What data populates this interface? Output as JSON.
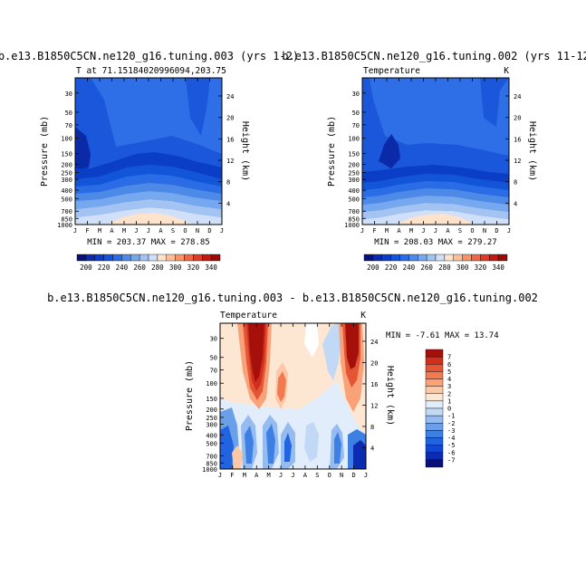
{
  "colors": {
    "background": "#ffffff",
    "frame": "#000000",
    "abs_levels": [
      190,
      200,
      210,
      220,
      230,
      240,
      250,
      260,
      270,
      280,
      290,
      300,
      310,
      320,
      330,
      340,
      350
    ],
    "abs_palette": [
      "#08107a",
      "#0a2aa8",
      "#0b3ec7",
      "#1355d8",
      "#2a6ce6",
      "#4d8ae8",
      "#75a8ee",
      "#a3c4f3",
      "#cfe0f8",
      "#fde3cc",
      "#fcbf9a",
      "#f89468",
      "#ee6843",
      "#dc3d24",
      "#c21a10",
      "#9a0a06"
    ],
    "diff_levels": [
      -8,
      -7,
      -6,
      -5,
      -4,
      -3,
      -2,
      -1,
      0,
      1,
      2,
      3,
      4,
      5,
      6,
      7,
      8
    ],
    "diff_palette": [
      "#08107a",
      "#0b2cb2",
      "#1147d2",
      "#2163e0",
      "#3e7fe4",
      "#6a9fe9",
      "#95bcf0",
      "#c2d9f6",
      "#e2edfb",
      "#fde7d2",
      "#fcc8a6",
      "#f9a27a",
      "#f27a52",
      "#e35534",
      "#cf2f1c",
      "#a6100a"
    ]
  },
  "chart_data": [
    {
      "type": "heatmap",
      "panel": "top-left",
      "title": "b.e13.B1850C5CN.ne120_g16.tuning.003 (yrs 1-2)",
      "subtitle_left": "T at 71.15184020996094,203.75",
      "subtitle_right": "",
      "ylabel": "Pressure (mb)",
      "ylabel_right": "Height (km)",
      "x_ticks": [
        "J",
        "F",
        "M",
        "A",
        "M",
        "J",
        "J",
        "A",
        "S",
        "O",
        "N",
        "D",
        "J"
      ],
      "y_ticks": [
        30,
        50,
        70,
        100,
        150,
        200,
        250,
        300,
        400,
        500,
        700,
        850,
        1000
      ],
      "y_right_ticks": [
        24,
        20,
        16,
        12,
        8,
        4
      ],
      "stats": "MIN = 203.37   MAX = 278.85",
      "colorbar_labels": [
        "200",
        "220",
        "240",
        "260",
        "280",
        "300",
        "320",
        "340"
      ],
      "colorbar_orientation": "horizontal",
      "min": 203.37,
      "max": 278.85
    },
    {
      "type": "heatmap",
      "panel": "top-right",
      "title": "b.e13.B1850C5CN.ne120_g16.tuning.002 (yrs 11-12",
      "subtitle_left": "Temperature",
      "subtitle_right": "K",
      "ylabel": "Pressure (mb)",
      "ylabel_right": "Height (km)",
      "x_ticks": [
        "J",
        "F",
        "M",
        "A",
        "M",
        "J",
        "J",
        "A",
        "S",
        "O",
        "N",
        "D",
        "J"
      ],
      "y_ticks": [
        30,
        50,
        70,
        100,
        150,
        200,
        250,
        300,
        400,
        500,
        700,
        850,
        1000
      ],
      "y_right_ticks": [
        24,
        20,
        16,
        12,
        8,
        4
      ],
      "stats": "MIN = 208.03   MAX = 279.27",
      "colorbar_labels": [
        "200",
        "220",
        "240",
        "260",
        "280",
        "300",
        "320",
        "340"
      ],
      "colorbar_orientation": "horizontal",
      "min": 208.03,
      "max": 279.27
    },
    {
      "type": "heatmap",
      "panel": "bottom",
      "title": "b.e13.B1850C5CN.ne120_g16.tuning.003 - b.e13.B1850C5CN.ne120_g16.tuning.002",
      "subtitle_left": "Temperature",
      "subtitle_right": "K",
      "ylabel": "Pressure (mb)",
      "ylabel_right": "Height (km)",
      "x_ticks": [
        "J",
        "F",
        "M",
        "A",
        "M",
        "J",
        "J",
        "A",
        "S",
        "O",
        "N",
        "D",
        "J"
      ],
      "y_ticks": [
        30,
        50,
        70,
        100,
        150,
        200,
        250,
        300,
        400,
        500,
        700,
        850,
        1000
      ],
      "y_right_ticks": [
        24,
        20,
        16,
        12,
        8,
        4
      ],
      "stats": "MIN = -7.61   MAX = 13.74",
      "colorbar_labels": [
        "7",
        "6",
        "5",
        "4",
        "3",
        "2",
        "1",
        "0",
        "-1",
        "-2",
        "-3",
        "-4",
        "-5",
        "-6",
        "-7"
      ],
      "colorbar_orientation": "vertical",
      "min": -7.61,
      "max": 13.74
    }
  ]
}
